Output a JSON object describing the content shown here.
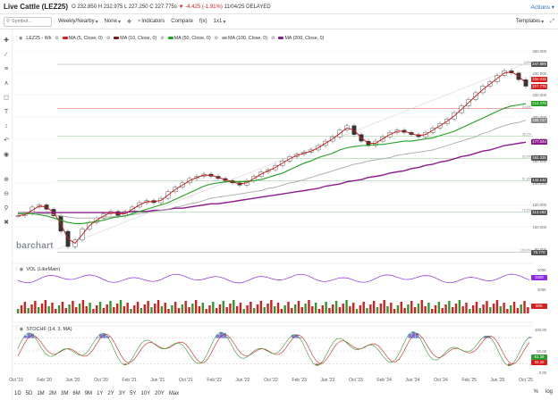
{
  "header": {
    "title": "Live Cattle (LEZ25)",
    "quote_prefix": "O 232.850 H 232.975 L 227.250 C 227.775s",
    "change": "▼ -4.425 (-1.91%)",
    "date": "11/04/25 DELAYED",
    "actions_label": "Actions ▾"
  },
  "toolbar": {
    "symbol_placeholder": "Symbol...",
    "weekly_label": "Weekly/Nearby",
    "none_label": "None",
    "indicators_label": "Indicators",
    "compare_label": "Compare",
    "fx_label": "f(x)",
    "ratio_label": "1x1",
    "templates_label": "Templates"
  },
  "legend": {
    "symbol": "LEZ25 - Wk",
    "ma5": "MA (5, Close, 0)",
    "ma10": "MA (10, Close, 0)",
    "ma50": "MA (50, Close, 0)",
    "ma100": "MA (100, Close, 0)",
    "ma200": "MA (200, Close, 0)"
  },
  "colors": {
    "ma5": "#d81b1b",
    "ma10": "#7a1a1a",
    "ma50": "#22a022",
    "ma100": "#a8a8a8",
    "ma200": "#8d1b8d",
    "up": "#2e9a2e",
    "down": "#d21f1f",
    "vol_line": "#8a2be2",
    "stoch_k": "#2e9a2e",
    "stoch_d": "#d81b1b",
    "stoch_fill_hi": "#3b4bd6",
    "stoch_fill_lo": "#e02020"
  },
  "brand": "barchart",
  "price_axis": {
    "ticks": [
      "260.000",
      "240.000",
      "220.000",
      "200.000",
      "180.000",
      "160.000",
      "140.000",
      "120.000",
      "100.000",
      "80.000"
    ],
    "tags": [
      {
        "label": "247.899",
        "color": "#555555",
        "value": 247.9
      },
      {
        "label": "234.015",
        "color": "#d81b1b",
        "value": 234.0
      },
      {
        "label": "227.775",
        "color": "#d21f1f",
        "value": 227.8
      },
      {
        "label": "212.478",
        "color": "#22a022",
        "value": 212.5
      },
      {
        "label": "196.727",
        "color": "#888888",
        "value": 196.7
      },
      {
        "label": "177.044",
        "color": "#8d1b8d",
        "value": 177.0
      },
      {
        "label": "162.335",
        "color": "#555555",
        "value": 162.3
      },
      {
        "label": "142.142",
        "color": "#555555",
        "value": 142.1
      },
      {
        "label": "113.282",
        "color": "#555555",
        "value": 113.3
      },
      {
        "label": "76.770",
        "color": "#555555",
        "value": 76.8
      }
    ],
    "fib_levels": [
      {
        "label": "0.0%",
        "value": 247.9
      },
      {
        "label": "23.6%",
        "value": 207.5
      },
      {
        "label": "38.2%",
        "value": 182.6
      },
      {
        "label": "50.0%",
        "value": 162.3
      },
      {
        "label": "61.8%",
        "value": 142.1
      },
      {
        "label": "78.6%",
        "value": 113.3
      },
      {
        "label": "100.0%",
        "value": 76.8
      }
    ]
  },
  "volume": {
    "label": "VOL (LikeMain)",
    "ticks": [
      "400K",
      "200K"
    ],
    "tags": [
      {
        "label": "3400",
        "color": "#8a2be2"
      },
      {
        "label": "80K",
        "color": "#d21f1f"
      }
    ]
  },
  "stoch": {
    "label": "STOCHF (14, 3, MA)",
    "ticks": [
      "100.00",
      "50.00",
      "0.00"
    ],
    "tags": [
      {
        "label": "51.39",
        "color": "#2e9a2e"
      },
      {
        "label": "32.30",
        "color": "#d81b1b"
      }
    ]
  },
  "chart_data": {
    "type": "line",
    "x_labels": [
      "Oct '19",
      "Feb '20",
      "Jun '20",
      "Oct '20",
      "Feb '21",
      "Jun '21",
      "Oct '21",
      "Feb '22",
      "Jun '22",
      "Oct '22",
      "Feb '23",
      "Jun '23",
      "Oct '23",
      "Feb '24",
      "Jun '24",
      "Oct '24",
      "Feb '25",
      "Jun '25",
      "Oct '25"
    ],
    "price_close": [
      110,
      112,
      118,
      120,
      116,
      110,
      96,
      82,
      88,
      98,
      104,
      108,
      112,
      114,
      110,
      114,
      118,
      122,
      124,
      122,
      126,
      132,
      136,
      140,
      144,
      146,
      148,
      146,
      144,
      142,
      140,
      138,
      142,
      146,
      150,
      152,
      156,
      160,
      164,
      166,
      168,
      170,
      174,
      178,
      182,
      188,
      192,
      184,
      178,
      174,
      178,
      182,
      186,
      188,
      186,
      184,
      182,
      186,
      190,
      194,
      198,
      204,
      210,
      216,
      222,
      228,
      232,
      238,
      242,
      240,
      234,
      228
    ],
    "ma50": [
      112,
      112,
      112,
      111,
      110,
      108,
      106,
      104,
      103,
      103,
      104,
      105,
      106,
      108,
      109,
      110,
      112,
      114,
      116,
      118,
      120,
      122,
      125,
      128,
      131,
      134,
      137,
      139,
      140,
      141,
      141,
      141,
      141,
      142,
      143,
      145,
      147,
      149,
      152,
      155,
      158,
      160,
      163,
      165,
      167,
      170,
      172,
      173,
      174,
      174,
      175,
      175,
      176,
      177,
      178,
      178,
      179,
      180,
      181,
      183,
      185,
      187,
      190,
      193,
      196,
      199,
      202,
      205,
      208,
      210,
      211,
      212
    ],
    "ma100": [
      113,
      113,
      113,
      112,
      112,
      111,
      110,
      109,
      108,
      108,
      108,
      108,
      109,
      109,
      110,
      110,
      111,
      112,
      113,
      114,
      115,
      116,
      118,
      119,
      121,
      122,
      124,
      126,
      127,
      128,
      129,
      130,
      131,
      132,
      133,
      135,
      136,
      138,
      140,
      141,
      143,
      145,
      147,
      149,
      151,
      153,
      155,
      157,
      158,
      160,
      161,
      162,
      163,
      165,
      166,
      167,
      168,
      169,
      170,
      172,
      174,
      176,
      178,
      180,
      182,
      185,
      187,
      190,
      192,
      194,
      195,
      197
    ],
    "ma200": [
      113,
      113,
      113,
      113,
      113,
      113,
      113,
      113,
      113,
      113,
      113,
      113,
      113,
      113,
      113,
      113,
      114,
      114,
      114,
      115,
      115,
      116,
      117,
      117,
      118,
      119,
      120,
      121,
      121,
      122,
      123,
      124,
      125,
      126,
      127,
      128,
      129,
      130,
      131,
      132,
      133,
      134,
      135,
      137,
      138,
      139,
      141,
      142,
      143,
      145,
      146,
      147,
      149,
      150,
      151,
      153,
      154,
      156,
      157,
      159,
      160,
      162,
      164,
      165,
      167,
      169,
      170,
      172,
      174,
      175,
      176,
      177
    ],
    "ylim": [
      70,
      265
    ]
  },
  "range_buttons": [
    "1D",
    "5D",
    "1M",
    "2M",
    "3M",
    "6M",
    "9M",
    "1Y",
    "2Y",
    "3Y",
    "5Y",
    "10Y",
    "20Y",
    "Max"
  ],
  "bottom_right": {
    "pct": "%",
    "log": "log"
  }
}
